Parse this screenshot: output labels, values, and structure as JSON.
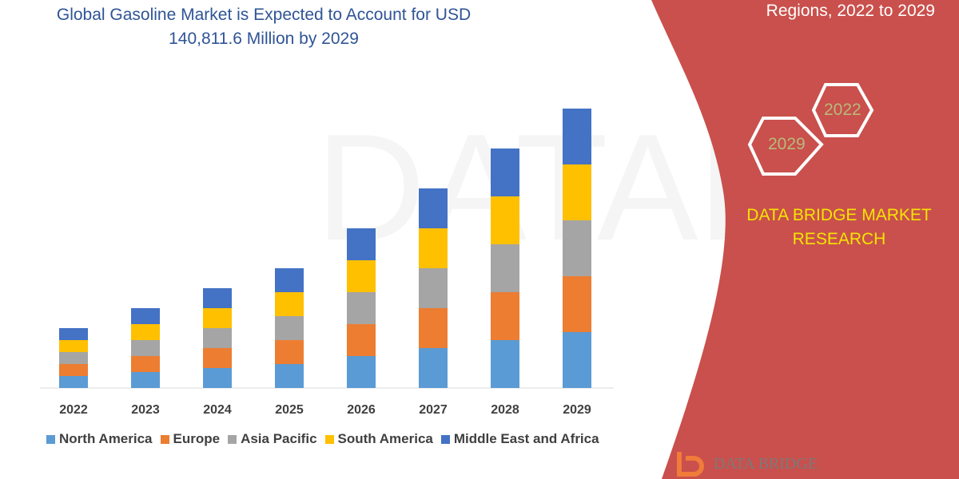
{
  "title": "Global Gasoline Market is Expected to Account for USD 140,811.6 Million by 2029",
  "right_panel": {
    "subtitle": "Regions, 2022 to 2029",
    "hex_left": "2029",
    "hex_right": "2022",
    "brand": "DATA BRIDGE MARKET RESEARCH",
    "logo_text": "DATA BRIDGE",
    "color": "#c9504c"
  },
  "chart_data": {
    "type": "bar",
    "stacked": true,
    "grid": false,
    "legend_placement": "bottom",
    "categories": [
      "2022",
      "2023",
      "2024",
      "2025",
      "2026",
      "2027",
      "2028",
      "2029"
    ],
    "ylim": [
      0,
      360
    ],
    "series": [
      {
        "name": "North America",
        "color": "#5b9bd5",
        "values": [
          15,
          20,
          25,
          30,
          40,
          50,
          60,
          70
        ]
      },
      {
        "name": "Europe",
        "color": "#ed7d31",
        "values": [
          15,
          20,
          25,
          30,
          40,
          50,
          60,
          70
        ]
      },
      {
        "name": "Asia Pacific",
        "color": "#a5a5a5",
        "values": [
          15,
          20,
          25,
          30,
          40,
          50,
          60,
          70
        ]
      },
      {
        "name": "South America",
        "color": "#ffc000",
        "values": [
          15,
          20,
          25,
          30,
          40,
          50,
          60,
          70
        ]
      },
      {
        "name": "Middle East and Africa",
        "color": "#4472c4",
        "values": [
          15,
          20,
          25,
          30,
          40,
          50,
          60,
          70
        ]
      }
    ]
  }
}
